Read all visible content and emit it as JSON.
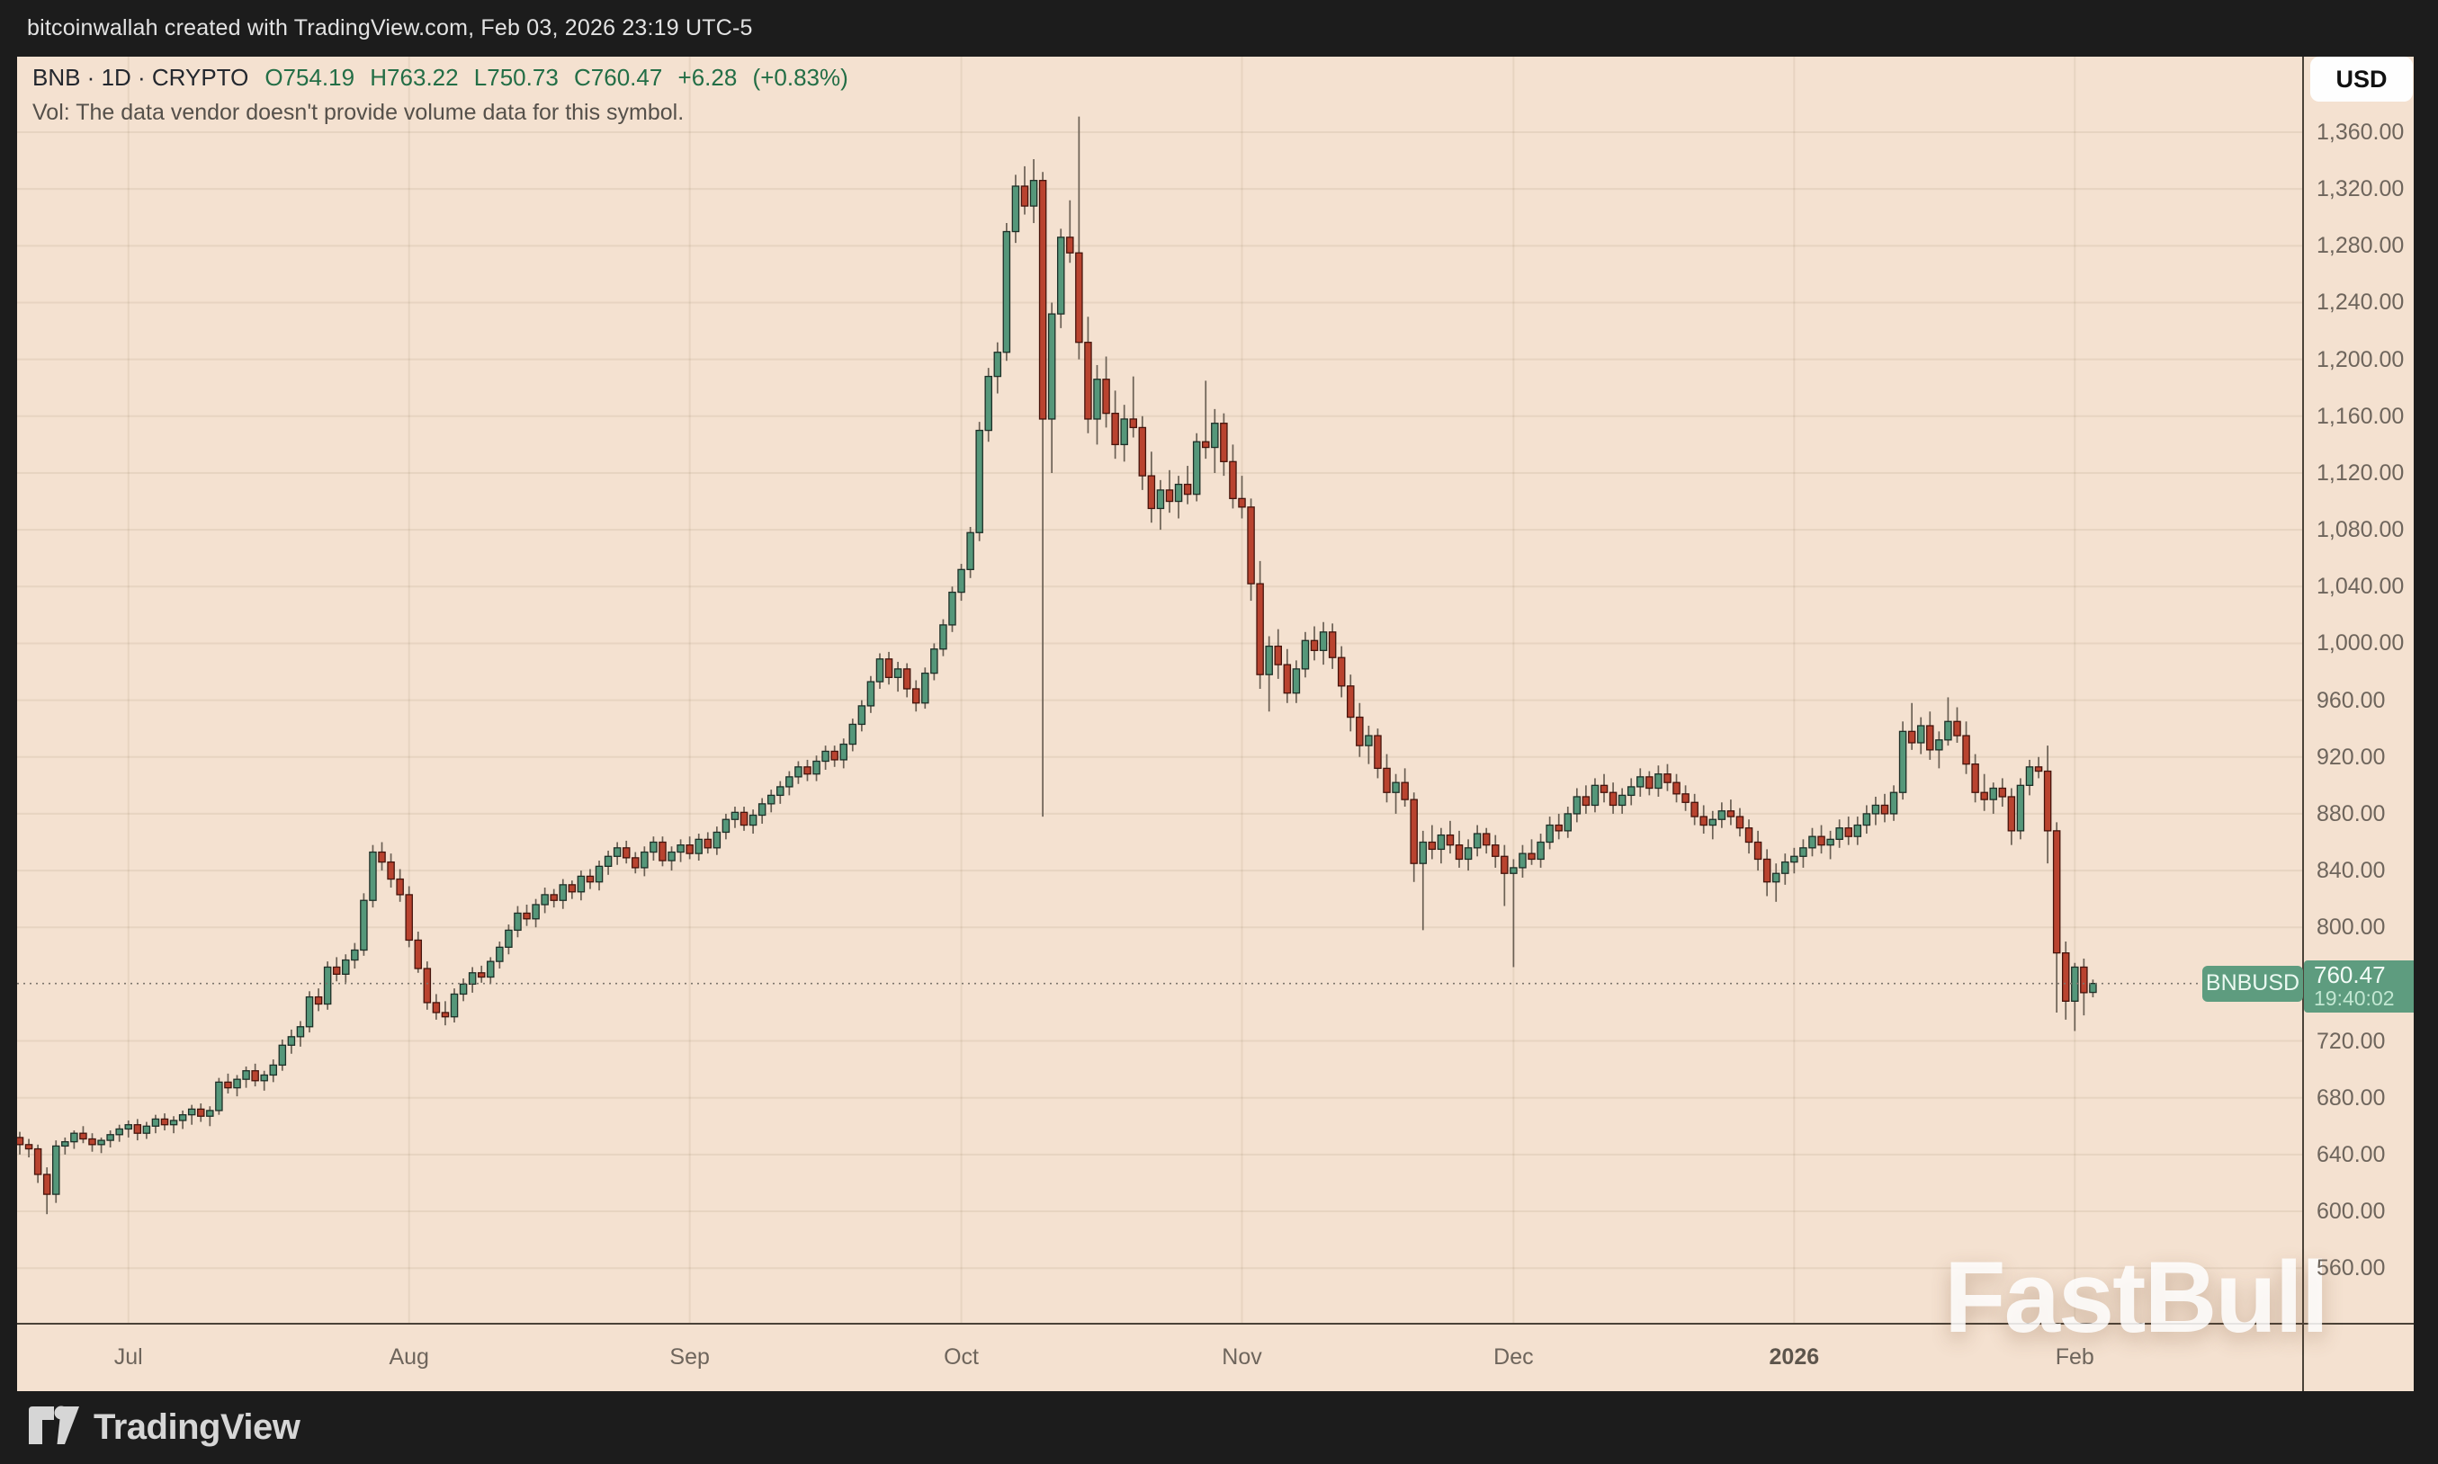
{
  "header": {
    "attribution": "bitcoinwallah created with TradingView.com, Feb 03, 2026 23:19 UTC-5"
  },
  "legend": {
    "symbol_line": "BNB · 1D · CRYPTO",
    "ohlc_line": "O754.19 H763.22 L750.73 C760.47 +6.28 (+0.83%)",
    "vol_note": "Vol: The data vendor doesn't provide volume data for this symbol."
  },
  "toolbar": {
    "currency_label": "USD"
  },
  "watermark_text": "FastBull",
  "footer": {
    "brand": "TradingView"
  },
  "chart_data": {
    "type": "candlestick",
    "symbol": "BNBUSD",
    "timeframe": "1D",
    "quote": {
      "open": 754.19,
      "high": 763.22,
      "low": 750.73,
      "close": 760.47,
      "change": 6.28,
      "change_pct": 0.83
    },
    "price_line": {
      "value": 760.47,
      "label": "760.47",
      "countdown": "19:40:02",
      "symbol_label": "BNBUSD"
    },
    "colors": {
      "up": "#55977a",
      "up_border": "#1e2f27",
      "down": "#b9432f",
      "down_border": "#45140c",
      "wick": "#6b6054",
      "background": "#f4e1d0",
      "badge": "#5e9c7f",
      "grid": "rgba(90,60,30,0.08)",
      "dotted_line": "#7c756c"
    },
    "price_axis": {
      "ticks": [
        {
          "value": 1360,
          "label": "1,360.00"
        },
        {
          "value": 1320,
          "label": "1,320.00"
        },
        {
          "value": 1280,
          "label": "1,280.00"
        },
        {
          "value": 1240,
          "label": "1,240.00"
        },
        {
          "value": 1200,
          "label": "1,200.00"
        },
        {
          "value": 1160,
          "label": "1,160.00"
        },
        {
          "value": 1120,
          "label": "1,120.00"
        },
        {
          "value": 1080,
          "label": "1,080.00"
        },
        {
          "value": 1040,
          "label": "1,040.00"
        },
        {
          "value": 1000,
          "label": "1,000.00"
        },
        {
          "value": 960,
          "label": "960.00"
        },
        {
          "value": 920,
          "label": "920.00"
        },
        {
          "value": 880,
          "label": "880.00"
        },
        {
          "value": 840,
          "label": "840.00"
        },
        {
          "value": 800,
          "label": "800.00"
        },
        {
          "value": 720,
          "label": "720.00"
        },
        {
          "value": 680,
          "label": "680.00"
        },
        {
          "value": 640,
          "label": "640.00"
        },
        {
          "value": 600,
          "label": "600.00"
        },
        {
          "value": 560,
          "label": "560.00"
        }
      ]
    },
    "time_axis": {
      "ticks": [
        {
          "label": "Jul",
          "index": 12,
          "bold": false
        },
        {
          "label": "Aug",
          "index": 43,
          "bold": false
        },
        {
          "label": "Sep",
          "index": 74,
          "bold": false
        },
        {
          "label": "Oct",
          "index": 104,
          "bold": false
        },
        {
          "label": "Nov",
          "index": 135,
          "bold": false
        },
        {
          "label": "Dec",
          "index": 165,
          "bold": false
        },
        {
          "label": "2026",
          "index": 196,
          "bold": true
        },
        {
          "label": "Feb",
          "index": 227,
          "bold": false
        }
      ]
    },
    "candles": [
      [
        652,
        656,
        640,
        647
      ],
      [
        647,
        651,
        638,
        644
      ],
      [
        644,
        647,
        620,
        626
      ],
      [
        626,
        631,
        598,
        612
      ],
      [
        612,
        650,
        606,
        646
      ],
      [
        646,
        652,
        640,
        649
      ],
      [
        649,
        657,
        644,
        655
      ],
      [
        655,
        660,
        648,
        651
      ],
      [
        651,
        655,
        642,
        647
      ],
      [
        647,
        652,
        641,
        650
      ],
      [
        650,
        657,
        645,
        654
      ],
      [
        654,
        661,
        649,
        658
      ],
      [
        658,
        664,
        652,
        661
      ],
      [
        661,
        665,
        650,
        655
      ],
      [
        655,
        663,
        651,
        660
      ],
      [
        660,
        668,
        655,
        665
      ],
      [
        665,
        669,
        657,
        661
      ],
      [
        661,
        667,
        655,
        664
      ],
      [
        664,
        671,
        658,
        668
      ],
      [
        668,
        675,
        661,
        672
      ],
      [
        672,
        676,
        663,
        667
      ],
      [
        667,
        674,
        660,
        671
      ],
      [
        671,
        694,
        668,
        691
      ],
      [
        691,
        697,
        683,
        687
      ],
      [
        687,
        696,
        681,
        693
      ],
      [
        693,
        702,
        687,
        699
      ],
      [
        699,
        704,
        688,
        692
      ],
      [
        692,
        699,
        685,
        696
      ],
      [
        696,
        707,
        691,
        703
      ],
      [
        703,
        721,
        699,
        717
      ],
      [
        717,
        728,
        711,
        723
      ],
      [
        723,
        734,
        716,
        730
      ],
      [
        730,
        755,
        726,
        751
      ],
      [
        751,
        757,
        741,
        746
      ],
      [
        746,
        776,
        742,
        772
      ],
      [
        772,
        779,
        762,
        767
      ],
      [
        767,
        781,
        761,
        777
      ],
      [
        777,
        789,
        771,
        784
      ],
      [
        784,
        824,
        780,
        819
      ],
      [
        819,
        858,
        814,
        853
      ],
      [
        853,
        860,
        840,
        846
      ],
      [
        846,
        852,
        828,
        834
      ],
      [
        834,
        841,
        818,
        823
      ],
      [
        823,
        829,
        786,
        791
      ],
      [
        791,
        797,
        768,
        771
      ],
      [
        771,
        776,
        742,
        747
      ],
      [
        747,
        753,
        735,
        740
      ],
      [
        740,
        748,
        731,
        737
      ],
      [
        737,
        757,
        733,
        753
      ],
      [
        753,
        764,
        748,
        760
      ],
      [
        760,
        772,
        754,
        768
      ],
      [
        768,
        773,
        761,
        765
      ],
      [
        765,
        779,
        760,
        776
      ],
      [
        776,
        790,
        771,
        786
      ],
      [
        786,
        802,
        781,
        798
      ],
      [
        798,
        815,
        793,
        810
      ],
      [
        810,
        816,
        801,
        806
      ],
      [
        806,
        820,
        800,
        816
      ],
      [
        816,
        828,
        810,
        823
      ],
      [
        823,
        827,
        814,
        819
      ],
      [
        819,
        834,
        813,
        830
      ],
      [
        830,
        833,
        820,
        825
      ],
      [
        825,
        840,
        819,
        836
      ],
      [
        836,
        841,
        827,
        832
      ],
      [
        832,
        847,
        826,
        843
      ],
      [
        843,
        854,
        837,
        850
      ],
      [
        850,
        860,
        844,
        856
      ],
      [
        856,
        861,
        845,
        849
      ],
      [
        849,
        853,
        838,
        842
      ],
      [
        842,
        857,
        836,
        853
      ],
      [
        853,
        864,
        847,
        860
      ],
      [
        860,
        864,
        843,
        847
      ],
      [
        847,
        857,
        840,
        853
      ],
      [
        853,
        862,
        846,
        858
      ],
      [
        858,
        864,
        848,
        852
      ],
      [
        852,
        866,
        847,
        862
      ],
      [
        862,
        867,
        852,
        856
      ],
      [
        856,
        871,
        851,
        867
      ],
      [
        867,
        880,
        862,
        876
      ],
      [
        876,
        885,
        870,
        881
      ],
      [
        881,
        885,
        868,
        872
      ],
      [
        872,
        883,
        866,
        879
      ],
      [
        879,
        891,
        873,
        887
      ],
      [
        887,
        897,
        881,
        893
      ],
      [
        893,
        903,
        887,
        899
      ],
      [
        899,
        910,
        893,
        906
      ],
      [
        906,
        917,
        901,
        913
      ],
      [
        913,
        918,
        903,
        908
      ],
      [
        908,
        921,
        903,
        917
      ],
      [
        917,
        928,
        911,
        924
      ],
      [
        924,
        928,
        913,
        918
      ],
      [
        918,
        933,
        912,
        929
      ],
      [
        929,
        947,
        924,
        943
      ],
      [
        943,
        960,
        938,
        956
      ],
      [
        956,
        977,
        951,
        973
      ],
      [
        973,
        993,
        968,
        989
      ],
      [
        989,
        994,
        971,
        976
      ],
      [
        976,
        987,
        966,
        982
      ],
      [
        982,
        986,
        962,
        968
      ],
      [
        968,
        974,
        952,
        958
      ],
      [
        958,
        983,
        954,
        979
      ],
      [
        979,
        1000,
        974,
        996
      ],
      [
        996,
        1017,
        991,
        1013
      ],
      [
        1013,
        1040,
        1008,
        1036
      ],
      [
        1036,
        1056,
        1030,
        1052
      ],
      [
        1052,
        1082,
        1046,
        1078
      ],
      [
        1078,
        1156,
        1072,
        1150
      ],
      [
        1150,
        1194,
        1142,
        1188
      ],
      [
        1188,
        1212,
        1176,
        1205
      ],
      [
        1205,
        1296,
        1199,
        1290
      ],
      [
        1290,
        1330,
        1282,
        1322
      ],
      [
        1322,
        1336,
        1302,
        1308
      ],
      [
        1308,
        1341,
        1296,
        1326
      ],
      [
        1326,
        1332,
        878,
        1158
      ],
      [
        1158,
        1240,
        1120,
        1232
      ],
      [
        1232,
        1292,
        1222,
        1286
      ],
      [
        1286,
        1312,
        1268,
        1275
      ],
      [
        1275,
        1371,
        1200,
        1212
      ],
      [
        1212,
        1230,
        1148,
        1158
      ],
      [
        1158,
        1196,
        1140,
        1186
      ],
      [
        1186,
        1202,
        1152,
        1162
      ],
      [
        1162,
        1178,
        1130,
        1140
      ],
      [
        1140,
        1168,
        1128,
        1158
      ],
      [
        1158,
        1188,
        1145,
        1152
      ],
      [
        1152,
        1160,
        1108,
        1118
      ],
      [
        1118,
        1135,
        1085,
        1095
      ],
      [
        1095,
        1115,
        1080,
        1108
      ],
      [
        1108,
        1122,
        1092,
        1100
      ],
      [
        1100,
        1118,
        1088,
        1112
      ],
      [
        1112,
        1125,
        1098,
        1105
      ],
      [
        1105,
        1148,
        1100,
        1142
      ],
      [
        1142,
        1185,
        1130,
        1138
      ],
      [
        1138,
        1165,
        1120,
        1155
      ],
      [
        1155,
        1162,
        1118,
        1128
      ],
      [
        1128,
        1140,
        1095,
        1102
      ],
      [
        1102,
        1118,
        1088,
        1096
      ],
      [
        1096,
        1102,
        1030,
        1042
      ],
      [
        1042,
        1058,
        968,
        978
      ],
      [
        978,
        1005,
        952,
        998
      ],
      [
        998,
        1010,
        975,
        985
      ],
      [
        985,
        996,
        958,
        965
      ],
      [
        965,
        988,
        958,
        982
      ],
      [
        982,
        1008,
        976,
        1002
      ],
      [
        1002,
        1012,
        988,
        995
      ],
      [
        995,
        1015,
        985,
        1008
      ],
      [
        1008,
        1014,
        982,
        990
      ],
      [
        990,
        998,
        962,
        970
      ],
      [
        970,
        978,
        938,
        948
      ],
      [
        948,
        958,
        920,
        928
      ],
      [
        928,
        942,
        915,
        935
      ],
      [
        935,
        940,
        905,
        912
      ],
      [
        912,
        922,
        888,
        895
      ],
      [
        895,
        908,
        880,
        902
      ],
      [
        902,
        912,
        885,
        890
      ],
      [
        890,
        895,
        832,
        845
      ],
      [
        845,
        868,
        798,
        860
      ],
      [
        860,
        872,
        848,
        855
      ],
      [
        855,
        870,
        845,
        865
      ],
      [
        865,
        875,
        852,
        858
      ],
      [
        858,
        868,
        842,
        848
      ],
      [
        848,
        862,
        840,
        856
      ],
      [
        856,
        872,
        850,
        866
      ],
      [
        866,
        870,
        852,
        858
      ],
      [
        858,
        865,
        842,
        850
      ],
      [
        850,
        858,
        815,
        838
      ],
      [
        838,
        848,
        772,
        842
      ],
      [
        842,
        858,
        835,
        852
      ],
      [
        852,
        862,
        844,
        848
      ],
      [
        848,
        866,
        842,
        860
      ],
      [
        860,
        878,
        855,
        872
      ],
      [
        872,
        880,
        862,
        868
      ],
      [
        868,
        885,
        863,
        880
      ],
      [
        880,
        898,
        874,
        892
      ],
      [
        892,
        900,
        880,
        886
      ],
      [
        886,
        905,
        881,
        900
      ],
      [
        900,
        908,
        888,
        895
      ],
      [
        895,
        902,
        880,
        886
      ],
      [
        886,
        898,
        880,
        893
      ],
      [
        893,
        905,
        886,
        899
      ],
      [
        899,
        912,
        892,
        906
      ],
      [
        906,
        910,
        893,
        898
      ],
      [
        898,
        914,
        892,
        908
      ],
      [
        908,
        915,
        896,
        902
      ],
      [
        902,
        908,
        888,
        894
      ],
      [
        894,
        900,
        882,
        888
      ],
      [
        888,
        894,
        872,
        878
      ],
      [
        878,
        886,
        866,
        872
      ],
      [
        872,
        882,
        862,
        876
      ],
      [
        876,
        888,
        870,
        882
      ],
      [
        882,
        890,
        872,
        878
      ],
      [
        878,
        884,
        864,
        870
      ],
      [
        870,
        876,
        852,
        860
      ],
      [
        860,
        868,
        840,
        848
      ],
      [
        848,
        855,
        822,
        832
      ],
      [
        832,
        845,
        818,
        838
      ],
      [
        838,
        852,
        830,
        846
      ],
      [
        846,
        856,
        838,
        850
      ],
      [
        850,
        862,
        842,
        856
      ],
      [
        856,
        870,
        850,
        864
      ],
      [
        864,
        872,
        852,
        858
      ],
      [
        858,
        868,
        848,
        862
      ],
      [
        862,
        876,
        856,
        870
      ],
      [
        870,
        878,
        858,
        864
      ],
      [
        864,
        878,
        858,
        872
      ],
      [
        872,
        886,
        866,
        880
      ],
      [
        880,
        892,
        872,
        886
      ],
      [
        886,
        894,
        874,
        880
      ],
      [
        880,
        900,
        875,
        895
      ],
      [
        895,
        945,
        890,
        938
      ],
      [
        938,
        958,
        925,
        930
      ],
      [
        930,
        948,
        922,
        942
      ],
      [
        942,
        952,
        918,
        925
      ],
      [
        925,
        938,
        912,
        932
      ],
      [
        932,
        962,
        928,
        945
      ],
      [
        945,
        955,
        930,
        935
      ],
      [
        935,
        945,
        908,
        915
      ],
      [
        915,
        922,
        888,
        895
      ],
      [
        895,
        908,
        882,
        890
      ],
      [
        890,
        902,
        880,
        898
      ],
      [
        898,
        905,
        885,
        892
      ],
      [
        892,
        898,
        858,
        868
      ],
      [
        868,
        905,
        862,
        900
      ],
      [
        900,
        918,
        893,
        913
      ],
      [
        913,
        920,
        905,
        910
      ],
      [
        910,
        928,
        845,
        868
      ],
      [
        868,
        874,
        740,
        782
      ],
      [
        782,
        790,
        735,
        748
      ],
      [
        748,
        775,
        727,
        772
      ],
      [
        772,
        778,
        738,
        754
      ],
      [
        754.19,
        763.22,
        750.73,
        760.47
      ]
    ]
  }
}
